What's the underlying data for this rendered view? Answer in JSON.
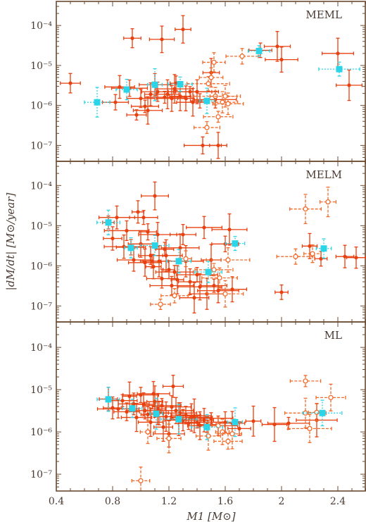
{
  "figure": {
    "ylabel": "|dM/dt| [M⊙/year]",
    "xlabel": "M1 [M⊙]",
    "xlim": [
      0.4,
      2.6
    ],
    "x_ticks": [
      0.4,
      0.8,
      1.2,
      1.6,
      2.0,
      2.4
    ],
    "x_tick_labels": [
      "0.4",
      "0.8",
      "1.2",
      "1.6",
      "2",
      "2.4"
    ],
    "y_scale": "log",
    "y_tick_labels": [
      "10⁻⁷",
      "10⁻⁶",
      "10⁻⁵",
      "10⁻⁴"
    ],
    "colors": {
      "frame": "#6b4a2f",
      "solid": "#e8400e",
      "dashed": "#f06a2a",
      "average": "#2bd4e6",
      "text": "#4a3b32"
    }
  },
  "chart_data": [
    {
      "type": "scatter",
      "label": "MEML",
      "ylim": [
        4e-08,
        0.0004
      ],
      "series": [
        {
          "style": "solid",
          "points": [
            [
              0.5,
              3.6e-06
            ],
            [
              0.82,
              1.2e-06
            ],
            [
              0.85,
              2.9e-06
            ],
            [
              0.92,
              2.7e-06
            ],
            [
              0.94,
              4.8e-05
            ],
            [
              0.97,
              5.8e-07
            ],
            [
              1.0,
              1.5e-06
            ],
            [
              1.03,
              9.5e-07
            ],
            [
              1.05,
              7.5e-07
            ],
            [
              1.07,
              1.9e-06
            ],
            [
              1.1,
              3.3e-06
            ],
            [
              1.12,
              2.2e-06
            ],
            [
              1.15,
              4.5e-05
            ],
            [
              1.17,
              1.6e-06
            ],
            [
              1.19,
              1.9e-06
            ],
            [
              1.22,
              1.5e-06
            ],
            [
              1.24,
              2.6e-06
            ],
            [
              1.25,
              3.6e-06
            ],
            [
              1.28,
              1.7e-06
            ],
            [
              1.3,
              8e-05
            ],
            [
              1.32,
              1.5e-06
            ],
            [
              1.35,
              2.2e-06
            ],
            [
              1.37,
              1.2e-06
            ],
            [
              1.4,
              2.2e-06
            ],
            [
              1.42,
              1.3e-06
            ],
            [
              1.44,
              1e-07
            ],
            [
              1.5,
              6.6e-06
            ],
            [
              1.53,
              1.4e-06
            ],
            [
              1.55,
              1e-07
            ],
            [
              1.85,
              2.4e-05
            ],
            [
              1.97,
              3e-05
            ],
            [
              2.0,
              1.4e-05
            ],
            [
              2.4,
              2e-05
            ],
            [
              2.48,
              3.2e-06
            ]
          ]
        },
        {
          "style": "dashed",
          "points": [
            [
              1.48,
              3.5e-06
            ],
            [
              1.5,
              5e-06
            ],
            [
              1.52,
              1.2e-05
            ],
            [
              1.53,
              1.7e-06
            ],
            [
              1.55,
              5.2e-07
            ],
            [
              1.58,
              1.2e-06
            ],
            [
              1.6,
              1.7e-06
            ],
            [
              1.62,
              1.1e-06
            ],
            [
              1.47,
              2.8e-07
            ],
            [
              1.72,
              1.7e-05
            ]
          ]
        },
        {
          "style": "average",
          "points": [
            [
              0.69,
              1.2e-06
            ],
            [
              0.9,
              2.5e-06
            ],
            [
              1.1,
              3.3e-06
            ],
            [
              1.28,
              3.4e-06
            ],
            [
              1.47,
              1.3e-06
            ],
            [
              1.84,
              2.3e-05
            ],
            [
              2.41,
              8.1e-06
            ]
          ]
        }
      ]
    },
    {
      "type": "scatter",
      "label": "MELM",
      "ylim": [
        4e-08,
        0.0004
      ],
      "series": [
        {
          "style": "solid",
          "points": [
            [
              0.77,
              1.2e-05
            ],
            [
              0.8,
              4.8e-06
            ],
            [
              0.83,
              1.6e-05
            ],
            [
              0.88,
              3e-06
            ],
            [
              0.9,
              7.5e-06
            ],
            [
              0.93,
              2.9e-06
            ],
            [
              0.95,
              1.4e-06
            ],
            [
              0.98,
              2.2e-05
            ],
            [
              1.0,
              3.5e-06
            ],
            [
              1.02,
              1.6e-05
            ],
            [
              1.03,
              1.2e-06
            ],
            [
              1.05,
              7e-06
            ],
            [
              1.07,
              1.8e-06
            ],
            [
              1.08,
              1.3e-06
            ],
            [
              1.09,
              9.5e-07
            ],
            [
              1.1,
              5.5e-05
            ],
            [
              1.12,
              6e-06
            ],
            [
              1.13,
              1.3e-06
            ],
            [
              1.15,
              4.8e-07
            ],
            [
              1.17,
              2.6e-06
            ],
            [
              1.18,
              1.8e-06
            ],
            [
              1.2,
              8e-07
            ],
            [
              1.22,
              3.2e-07
            ],
            [
              1.24,
              7e-07
            ],
            [
              1.26,
              4.5e-07
            ],
            [
              1.28,
              2.8e-06
            ],
            [
              1.3,
              6e-06
            ],
            [
              1.32,
              1.3e-06
            ],
            [
              1.35,
              4e-07
            ],
            [
              1.38,
              1.6e-07
            ],
            [
              1.4,
              6e-07
            ],
            [
              1.42,
              3e-07
            ],
            [
              1.45,
              9e-06
            ],
            [
              1.47,
              2e-07
            ],
            [
              1.5,
              1.4e-06
            ],
            [
              1.52,
              3.2e-07
            ],
            [
              1.55,
              2.4e-07
            ],
            [
              1.6,
              3.5e-06
            ],
            [
              1.63,
              8e-06
            ],
            [
              1.65,
              2.6e-07
            ],
            [
              2.0,
              2.2e-07
            ],
            [
              2.2,
              3.1e-06
            ],
            [
              2.28,
              1.5e-06
            ],
            [
              2.45,
              1.7e-06
            ],
            [
              2.53,
              1.6e-06
            ]
          ]
        },
        {
          "style": "dashed",
          "points": [
            [
              1.14,
              1.1e-07
            ],
            [
              1.24,
              1.8e-07
            ],
            [
              1.32,
              1.5e-06
            ],
            [
              1.52,
              8e-07
            ],
            [
              1.56,
              5e-07
            ],
            [
              1.6,
              2e-07
            ],
            [
              1.62,
              1.4e-06
            ],
            [
              2.17,
              2.6e-05
            ],
            [
              2.22,
              2e-06
            ],
            [
              2.33,
              3.9e-05
            ],
            [
              2.1,
              1.7e-06
            ]
          ]
        },
        {
          "style": "average",
          "points": [
            [
              0.77,
              1.2e-05
            ],
            [
              0.93,
              2.8e-06
            ],
            [
              1.1,
              3.2e-06
            ],
            [
              1.27,
              1.3e-06
            ],
            [
              1.48,
              7e-07
            ],
            [
              1.67,
              3.6e-06
            ],
            [
              2.3,
              2.7e-06
            ]
          ]
        }
      ]
    },
    {
      "type": "scatter",
      "label": "ML",
      "ylim": [
        4e-08,
        0.0004
      ],
      "series": [
        {
          "style": "solid",
          "points": [
            [
              0.77,
              6e-06
            ],
            [
              0.8,
              3.7e-06
            ],
            [
              0.84,
              3.5e-06
            ],
            [
              0.87,
              5.5e-06
            ],
            [
              0.9,
              3e-06
            ],
            [
              0.92,
              7e-06
            ],
            [
              0.95,
              4.6e-06
            ],
            [
              0.97,
              2.2e-06
            ],
            [
              1.0,
              7.5e-06
            ],
            [
              1.02,
              4.5e-06
            ],
            [
              1.03,
              3.2e-06
            ],
            [
              1.05,
              2.6e-06
            ],
            [
              1.07,
              1.7e-06
            ],
            [
              1.09,
              8e-06
            ],
            [
              1.1,
              5.2e-06
            ],
            [
              1.12,
              3.5e-06
            ],
            [
              1.13,
              2.8e-06
            ],
            [
              1.15,
              4.2e-06
            ],
            [
              1.16,
              1.3e-06
            ],
            [
              1.18,
              2.3e-06
            ],
            [
              1.2,
              9e-07
            ],
            [
              1.22,
              3.9e-06
            ],
            [
              1.23,
              1.2e-05
            ],
            [
              1.25,
              3.2e-06
            ],
            [
              1.27,
              2e-06
            ],
            [
              1.28,
              2.8e-06
            ],
            [
              1.3,
              1.9e-06
            ],
            [
              1.32,
              2.5e-06
            ],
            [
              1.34,
              1.6e-06
            ],
            [
              1.36,
              2.2e-06
            ],
            [
              1.38,
              2.4e-06
            ],
            [
              1.4,
              1.7e-06
            ],
            [
              1.42,
              1.4e-06
            ],
            [
              1.45,
              1.9e-06
            ],
            [
              1.47,
              1.5e-06
            ],
            [
              1.5,
              2.1e-06
            ],
            [
              1.55,
              1.4e-06
            ],
            [
              1.6,
              1.7e-06
            ],
            [
              1.65,
              1.6e-06
            ],
            [
              1.7,
              1.2e-06
            ],
            [
              1.8,
              1.8e-06
            ],
            [
              1.95,
              1.5e-06
            ],
            [
              2.05,
              1.6e-06
            ],
            [
              2.25,
              1.9e-06
            ]
          ]
        },
        {
          "style": "dashed",
          "points": [
            [
              1.05,
              1e-06
            ],
            [
              1.2,
              7e-07
            ],
            [
              1.48,
              8e-07
            ],
            [
              1.55,
              1.4e-06
            ],
            [
              1.58,
              1e-06
            ],
            [
              1.62,
              6e-07
            ],
            [
              1.65,
              9e-07
            ],
            [
              1.0,
              7e-08
            ],
            [
              2.17,
              1.6e-05
            ],
            [
              2.17,
              2.8e-06
            ],
            [
              2.25,
              2.9e-06
            ],
            [
              2.35,
              6.5e-06
            ],
            [
              2.2,
              1.2e-06
            ]
          ]
        },
        {
          "style": "average",
          "points": [
            [
              0.77,
              5.9e-06
            ],
            [
              0.94,
              3.6e-06
            ],
            [
              1.11,
              2.7e-06
            ],
            [
              1.27,
              2e-06
            ],
            [
              1.47,
              1.3e-06
            ],
            [
              1.67,
              1.7e-06
            ],
            [
              2.29,
              2.8e-06
            ]
          ]
        }
      ]
    }
  ]
}
